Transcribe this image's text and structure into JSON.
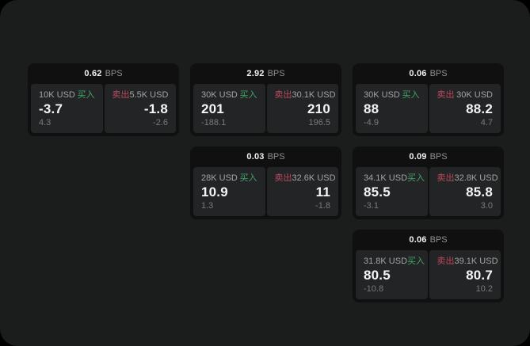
{
  "labels": {
    "buy": "买入",
    "sell": "卖出",
    "bps": "BPS"
  },
  "colors": {
    "window_bg": "#1b1c1c",
    "card_bg": "#101010",
    "panel_bg": "#232425",
    "buy": "#42a568",
    "sell": "#bb4a5e"
  },
  "cards": [
    {
      "col": 1,
      "row": 1,
      "bps": "0.62",
      "buy": {
        "amount": "10K USD",
        "price": "-3.7",
        "delta": "4.3"
      },
      "sell": {
        "amount": "5.5K USD",
        "price": "-1.8",
        "delta": "-2.6"
      }
    },
    {
      "col": 2,
      "row": 1,
      "bps": "2.92",
      "buy": {
        "amount": "30K USD",
        "price": "201",
        "delta": "-188.1"
      },
      "sell": {
        "amount": "30.1K USD",
        "price": "210",
        "delta": "196.5"
      }
    },
    {
      "col": 3,
      "row": 1,
      "bps": "0.06",
      "buy": {
        "amount": "30K USD",
        "price": "88",
        "delta": "-4.9"
      },
      "sell": {
        "amount": "30K USD",
        "price": "88.2",
        "delta": "4.7"
      }
    },
    {
      "col": 2,
      "row": 2,
      "bps": "0.03",
      "buy": {
        "amount": "28K USD",
        "price": "10.9",
        "delta": "1.3"
      },
      "sell": {
        "amount": "32.6K USD",
        "price": "11",
        "delta": "-1.8"
      }
    },
    {
      "col": 3,
      "row": 2,
      "bps": "0.09",
      "buy": {
        "amount": "34.1K USD",
        "price": "85.5",
        "delta": "-3.1"
      },
      "sell": {
        "amount": "32.8K USD",
        "price": "85.8",
        "delta": "3.0"
      }
    },
    {
      "col": 3,
      "row": 3,
      "bps": "0.06",
      "buy": {
        "amount": "31.8K USD",
        "price": "80.5",
        "delta": "-10.8"
      },
      "sell": {
        "amount": "39.1K USD",
        "price": "80.7",
        "delta": "10.2"
      }
    }
  ]
}
